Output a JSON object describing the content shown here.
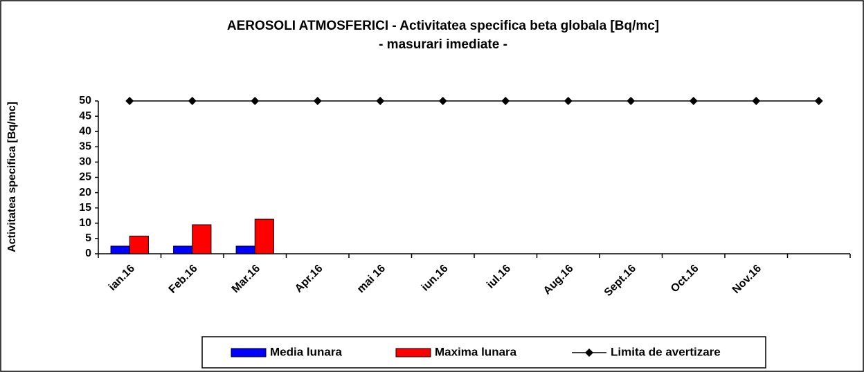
{
  "chart_data": {
    "type": "bar",
    "title": "AEROSOLI  ATMOSFERICI - Activitatea specifica beta globala [Bq/mc]",
    "subtitle": "- masurari imediate -",
    "y_label": "Activitatea specifica [Bq/mc]",
    "categories": [
      "ian.16",
      "Feb.16",
      "Mar.16",
      "Apr.16",
      "mai 16",
      "iun.16",
      "iul.16",
      "Aug.16",
      "Sept.16",
      "Oct.16",
      "Nov.16",
      null
    ],
    "series": [
      {
        "name": "Media lunara",
        "color": "#0000ff",
        "type": "bar",
        "values": [
          2.5,
          2.5,
          2.5,
          null,
          null,
          null,
          null,
          null,
          null,
          null,
          null,
          null
        ]
      },
      {
        "name": "Maxima lunara",
        "color": "#ff0000",
        "type": "bar",
        "values": [
          5.8,
          9.5,
          11.3,
          null,
          null,
          null,
          null,
          null,
          null,
          null,
          null,
          null
        ]
      },
      {
        "name": "Limita de avertizare",
        "color": "#000000",
        "type": "line",
        "marker": "diamond",
        "values": [
          50,
          50,
          50,
          50,
          50,
          50,
          50,
          50,
          50,
          50,
          50,
          50
        ]
      }
    ],
    "ylim": [
      0,
      50
    ],
    "yticks": [
      0,
      5,
      10,
      15,
      20,
      25,
      30,
      35,
      40,
      45,
      50
    ],
    "legend": "bottom"
  }
}
